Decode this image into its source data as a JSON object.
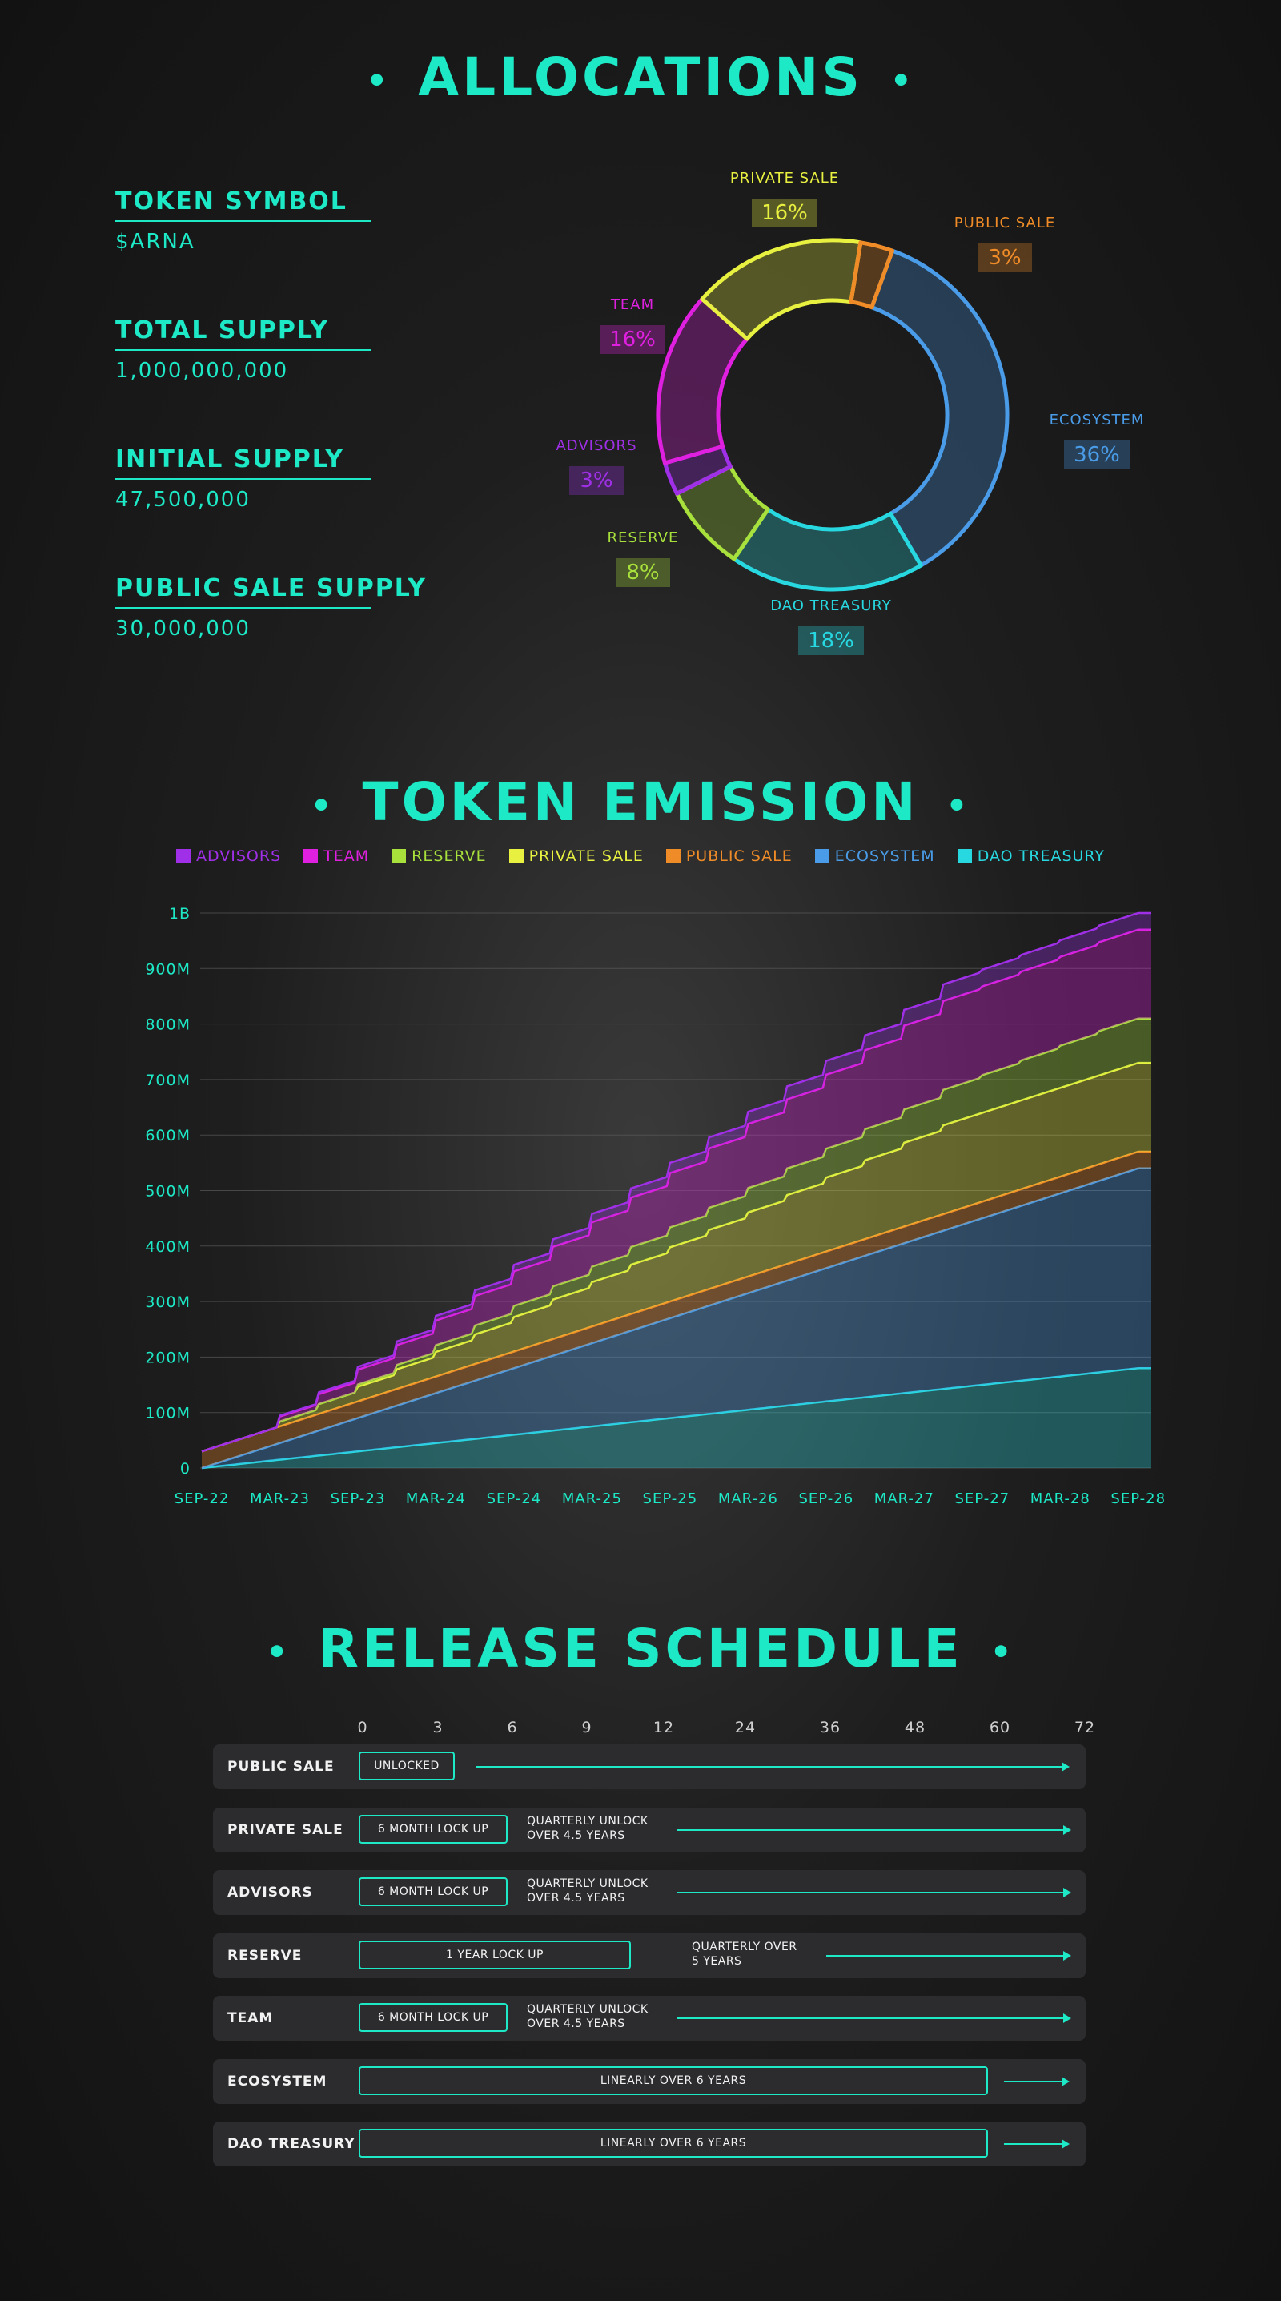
{
  "titles": {
    "allocations": "ALLOCATIONS",
    "emission": "TOKEN EMISSION",
    "release": "RELEASE SCHEDULE",
    "dot": "•"
  },
  "token_info": [
    {
      "label": "TOKEN SYMBOL",
      "value": "$ARNA"
    },
    {
      "label": "TOTAL SUPPLY",
      "value": "1,000,000,000"
    },
    {
      "label": "INITIAL SUPPLY",
      "value": "47,500,000"
    },
    {
      "label": "PUBLIC SALE SUPPLY",
      "value": "30,000,000"
    }
  ],
  "colors": {
    "accent": "#1de9c6",
    "advisors": "#a030e8",
    "team": "#e020e0",
    "reserve": "#a8e03c",
    "private_sale": "#e8f040",
    "public_sale": "#f08c28",
    "ecosystem": "#4a9ce8",
    "dao_treasury": "#28d8e0"
  },
  "chart_data": [
    {
      "type": "pie",
      "variant": "donut",
      "categories": [
        "ECOSYSTEM",
        "DAO TREASURY",
        "RESERVE",
        "ADVISORS",
        "TEAM",
        "PRIVATE SALE",
        "PUBLIC SALE"
      ],
      "values": [
        36,
        18,
        8,
        3,
        16,
        16,
        3
      ],
      "labels": [
        "36%",
        "18%",
        "8%",
        "3%",
        "16%",
        "16%",
        "3%"
      ],
      "colors": [
        "#4a9ce8",
        "#28d8e0",
        "#a8e03c",
        "#a030e8",
        "#e020e0",
        "#e8f040",
        "#f08c28"
      ]
    },
    {
      "type": "area",
      "stacked": true,
      "x_tick_labels": [
        "SEP-22",
        "MAR-23",
        "SEP-23",
        "MAR-24",
        "SEP-24",
        "MAR-25",
        "SEP-25",
        "MAR-26",
        "SEP-26",
        "MAR-27",
        "SEP-27",
        "MAR-28",
        "SEP-28"
      ],
      "y_tick_labels": [
        "0",
        "100M",
        "200M",
        "300M",
        "400M",
        "500M",
        "600M",
        "700M",
        "800M",
        "900M",
        "1B"
      ],
      "ylim": [
        0,
        1000000000
      ],
      "xlim_months": [
        0,
        73
      ],
      "legend": [
        "ADVISORS",
        "TEAM",
        "RESERVE",
        "PRIVATE SALE",
        "PUBLIC SALE",
        "ECOSYSTEM",
        "DAO TREASURY"
      ],
      "series": [
        {
          "name": "DAO TREASURY",
          "color": "#28d8e0",
          "total": 180000000,
          "start_month": 0,
          "end_month": 72,
          "schedule": "linear"
        },
        {
          "name": "ECOSYSTEM",
          "color": "#4a9ce8",
          "total": 360000000,
          "start_month": 0,
          "end_month": 72,
          "schedule": "linear"
        },
        {
          "name": "PUBLIC SALE",
          "color": "#f08c28",
          "total": 30000000,
          "start_month": 0,
          "end_month": 0,
          "schedule": "unlocked"
        },
        {
          "name": "PRIVATE SALE",
          "color": "#e8f040",
          "total": 160000000,
          "start_month": 6,
          "end_month": 60,
          "schedule": "quarterly"
        },
        {
          "name": "RESERVE",
          "color": "#a8e03c",
          "total": 80000000,
          "start_month": 12,
          "end_month": 72,
          "schedule": "quarterly"
        },
        {
          "name": "TEAM",
          "color": "#e020e0",
          "total": 160000000,
          "start_month": 6,
          "end_month": 60,
          "schedule": "quarterly"
        },
        {
          "name": "ADVISORS",
          "color": "#a030e8",
          "total": 30000000,
          "start_month": 6,
          "end_month": 60,
          "schedule": "quarterly"
        }
      ]
    }
  ],
  "release_schedule": {
    "month_ticks": [
      "0",
      "3",
      "6",
      "9",
      "12",
      "24",
      "36",
      "48",
      "60",
      "72"
    ],
    "rows": [
      {
        "name": "PUBLIC SALE",
        "box": "UNLOCKED",
        "note": ""
      },
      {
        "name": "PRIVATE SALE",
        "box": "6 MONTH LOCK UP",
        "note": "QUARTERLY UNLOCK\nOVER 4.5 YEARS"
      },
      {
        "name": "ADVISORS",
        "box": "6 MONTH LOCK UP",
        "note": "QUARTERLY UNLOCK\nOVER 4.5 YEARS"
      },
      {
        "name": "RESERVE",
        "box": "1 YEAR LOCK UP",
        "note": "QUARTERLY OVER\n5 YEARS"
      },
      {
        "name": "TEAM",
        "box": "6 MONTH LOCK UP",
        "note": "QUARTERLY UNLOCK\nOVER 4.5 YEARS"
      },
      {
        "name": "ECOSYSTEM",
        "box": "LINEARLY OVER 6 YEARS",
        "note": ""
      },
      {
        "name": "DAO TREASURY",
        "box": "LINEARLY OVER 6 YEARS",
        "note": ""
      }
    ]
  }
}
